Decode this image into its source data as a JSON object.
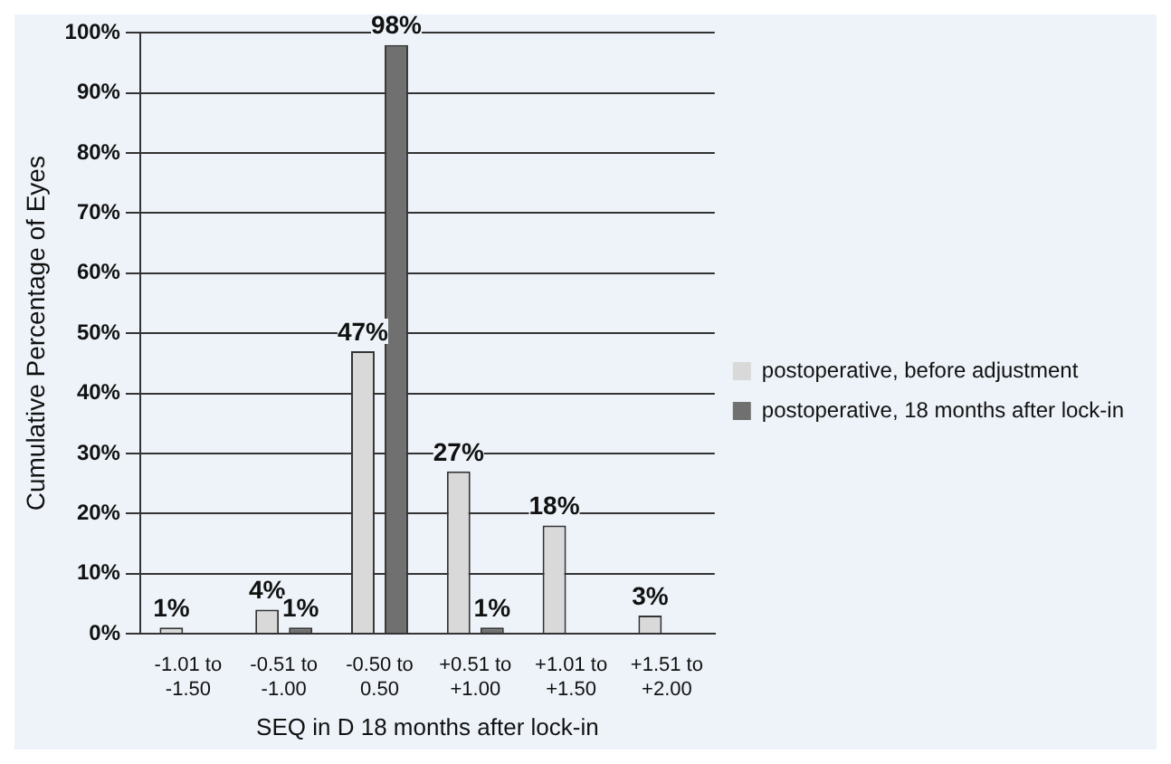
{
  "chart_data": {
    "type": "bar",
    "categories": [
      "-1.01 to -1.50",
      "-0.51 to -1.00",
      "-0.50 to 0.50",
      "+0.51 to +1.00",
      "+1.01 to +1.50",
      "+1.51 to +2.00"
    ],
    "series": [
      {
        "name": "postoperative, before adjustment",
        "color": "#d9d9d9",
        "values": [
          1,
          4,
          47,
          27,
          18,
          3
        ],
        "value_labels": [
          "1%",
          "4%",
          "47%",
          "27%",
          "18%",
          "3%"
        ]
      },
      {
        "name": "postoperative, 18 months after lock-in",
        "color": "#707070",
        "values": [
          0,
          1,
          98,
          1,
          0,
          0
        ],
        "value_labels": [
          null,
          "1%",
          "98%",
          "1%",
          null,
          null
        ]
      }
    ],
    "xlabel": "SEQ in D 18 months after lock-in",
    "ylabel": "Cumulative Percentage of Eyes",
    "ylim": [
      0,
      100
    ],
    "yticks": [
      {
        "value": 0,
        "label": "0%"
      },
      {
        "value": 10,
        "label": "10%"
      },
      {
        "value": 20,
        "label": "20%"
      },
      {
        "value": 30,
        "label": "30%"
      },
      {
        "value": 40,
        "label": "40%"
      },
      {
        "value": 50,
        "label": "50%"
      },
      {
        "value": 60,
        "label": "60%"
      },
      {
        "value": 70,
        "label": "70%"
      },
      {
        "value": 80,
        "label": "80%"
      },
      {
        "value": 90,
        "label": "90%"
      },
      {
        "value": 100,
        "label": "100%"
      }
    ],
    "grid": "y",
    "legend": "right"
  }
}
